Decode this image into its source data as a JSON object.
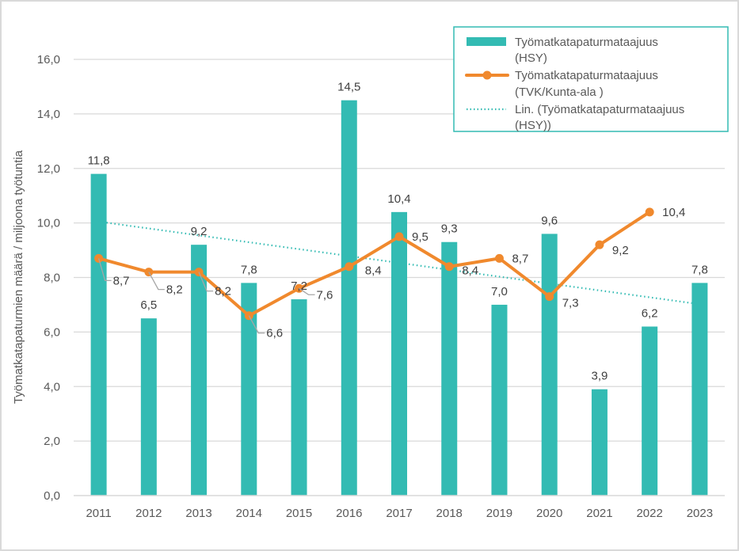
{
  "chart_data": {
    "type": "bar",
    "title": "",
    "xlabel": "",
    "ylabel": "Työmatkatapaturmien määrä / miljoona työtuntia",
    "ylim": [
      0,
      16
    ],
    "yticks": [
      "0,0",
      "2,0",
      "4,0",
      "6,0",
      "8,0",
      "10,0",
      "12,0",
      "14,0",
      "16,0"
    ],
    "ytick_values": [
      0,
      2,
      4,
      6,
      8,
      10,
      12,
      14,
      16
    ],
    "grid": true,
    "legend_position": "top-right",
    "categories": [
      "2011",
      "2012",
      "2013",
      "2014",
      "2015",
      "2016",
      "2017",
      "2018",
      "2019",
      "2020",
      "2021",
      "2022",
      "2023"
    ],
    "series": [
      {
        "name": "Työmatkatapaturmataajuus (HSY)",
        "legend_lines": [
          "Työmatkatapaturmataajuus",
          "(HSY)"
        ],
        "type": "bar",
        "color": "#33BBB3",
        "values": [
          11.8,
          6.5,
          9.2,
          7.8,
          7.2,
          14.5,
          10.4,
          9.3,
          7.0,
          9.6,
          3.9,
          6.2,
          7.8
        ],
        "labels": [
          "11,8",
          "6,5",
          "9,2",
          "7,8",
          "7,2",
          "14,5",
          "10,4",
          "9,3",
          "7,0",
          "9,6",
          "3,9",
          "6,2",
          "7,8"
        ]
      },
      {
        "name": "Työmatkatapaturmataajuus (TVK/Kunta-ala )",
        "legend_lines": [
          "Työmatkatapaturmataajuus",
          "(TVK/Kunta-ala )"
        ],
        "type": "line",
        "color": "#F0892D",
        "values": [
          8.7,
          8.2,
          8.2,
          6.6,
          7.6,
          8.4,
          9.5,
          8.4,
          8.7,
          7.3,
          9.2,
          10.4,
          null
        ],
        "labels": [
          "8,7",
          "8,2",
          "8,2",
          "6,6",
          "7,6",
          "8,4",
          "9,5",
          "8,4",
          "8,7",
          "7,3",
          "9,2",
          "10,4",
          null
        ]
      },
      {
        "name": "Lin. (Työmatkatapaturmataajuus (HSY))",
        "legend_lines": [
          "Lin. (Työmatkatapaturmataajuus",
          "(HSY))"
        ],
        "type": "trendline",
        "color": "#33BBB3",
        "start_value": 10.05,
        "end_value": 7.06
      }
    ]
  }
}
